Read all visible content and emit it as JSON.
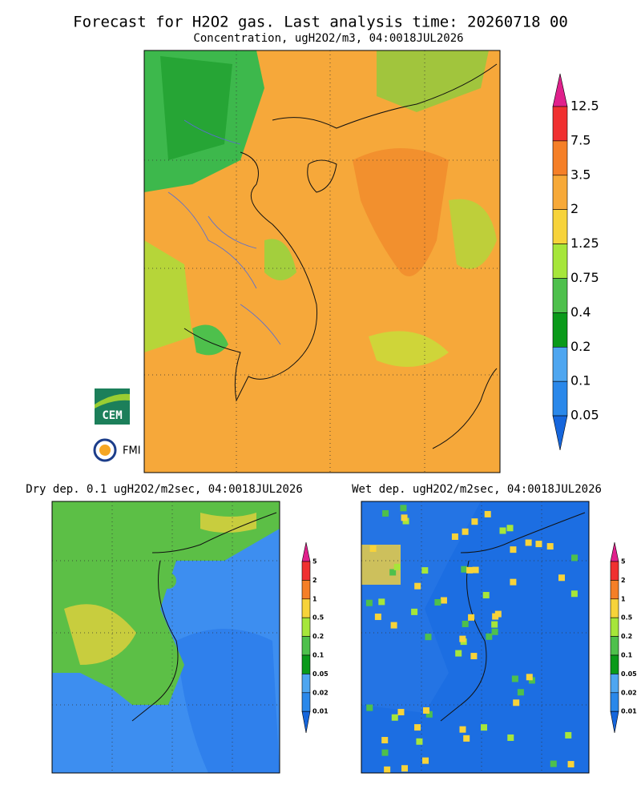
{
  "header": {
    "title": "Forecast for H2O2 gas. Last analysis time: 20260718 00",
    "subtitle": "Concentration, ugH2O2/m3, 04:0018JUL2026"
  },
  "panels": [
    {
      "title": "Dry dep. 0.1 ugH2O2/m2sec, 04:0018JUL2026"
    },
    {
      "title": "Wet dep. ugH2O2/m2sec, 04:0018JUL2026"
    }
  ],
  "colorbars": {
    "main": {
      "labels": [
        "12.5",
        "7.5",
        "3.5",
        "2",
        "1.25",
        "0.75",
        "0.4",
        "0.2",
        "0.1",
        "0.05"
      ],
      "colors": [
        "#e0208c",
        "#f03030",
        "#f57f27",
        "#f7a938",
        "#f7d33a",
        "#a6e63a",
        "#4ec04c",
        "#0a9a1a",
        "#4ea6f0",
        "#2a88ea",
        "#1666dc"
      ]
    },
    "small": {
      "labels": [
        "5",
        "2",
        "1",
        "0.5",
        "0.2",
        "0.1",
        "0.05",
        "0.02",
        "0.01"
      ],
      "colors": [
        "#e0208c",
        "#f03030",
        "#f57f27",
        "#f7d33a",
        "#a6e63a",
        "#4ec04c",
        "#0a9a1a",
        "#4ea6f0",
        "#2a88ea",
        "#1666dc"
      ]
    }
  },
  "logos": {
    "cem": "CEM",
    "fmi": "FMI"
  }
}
